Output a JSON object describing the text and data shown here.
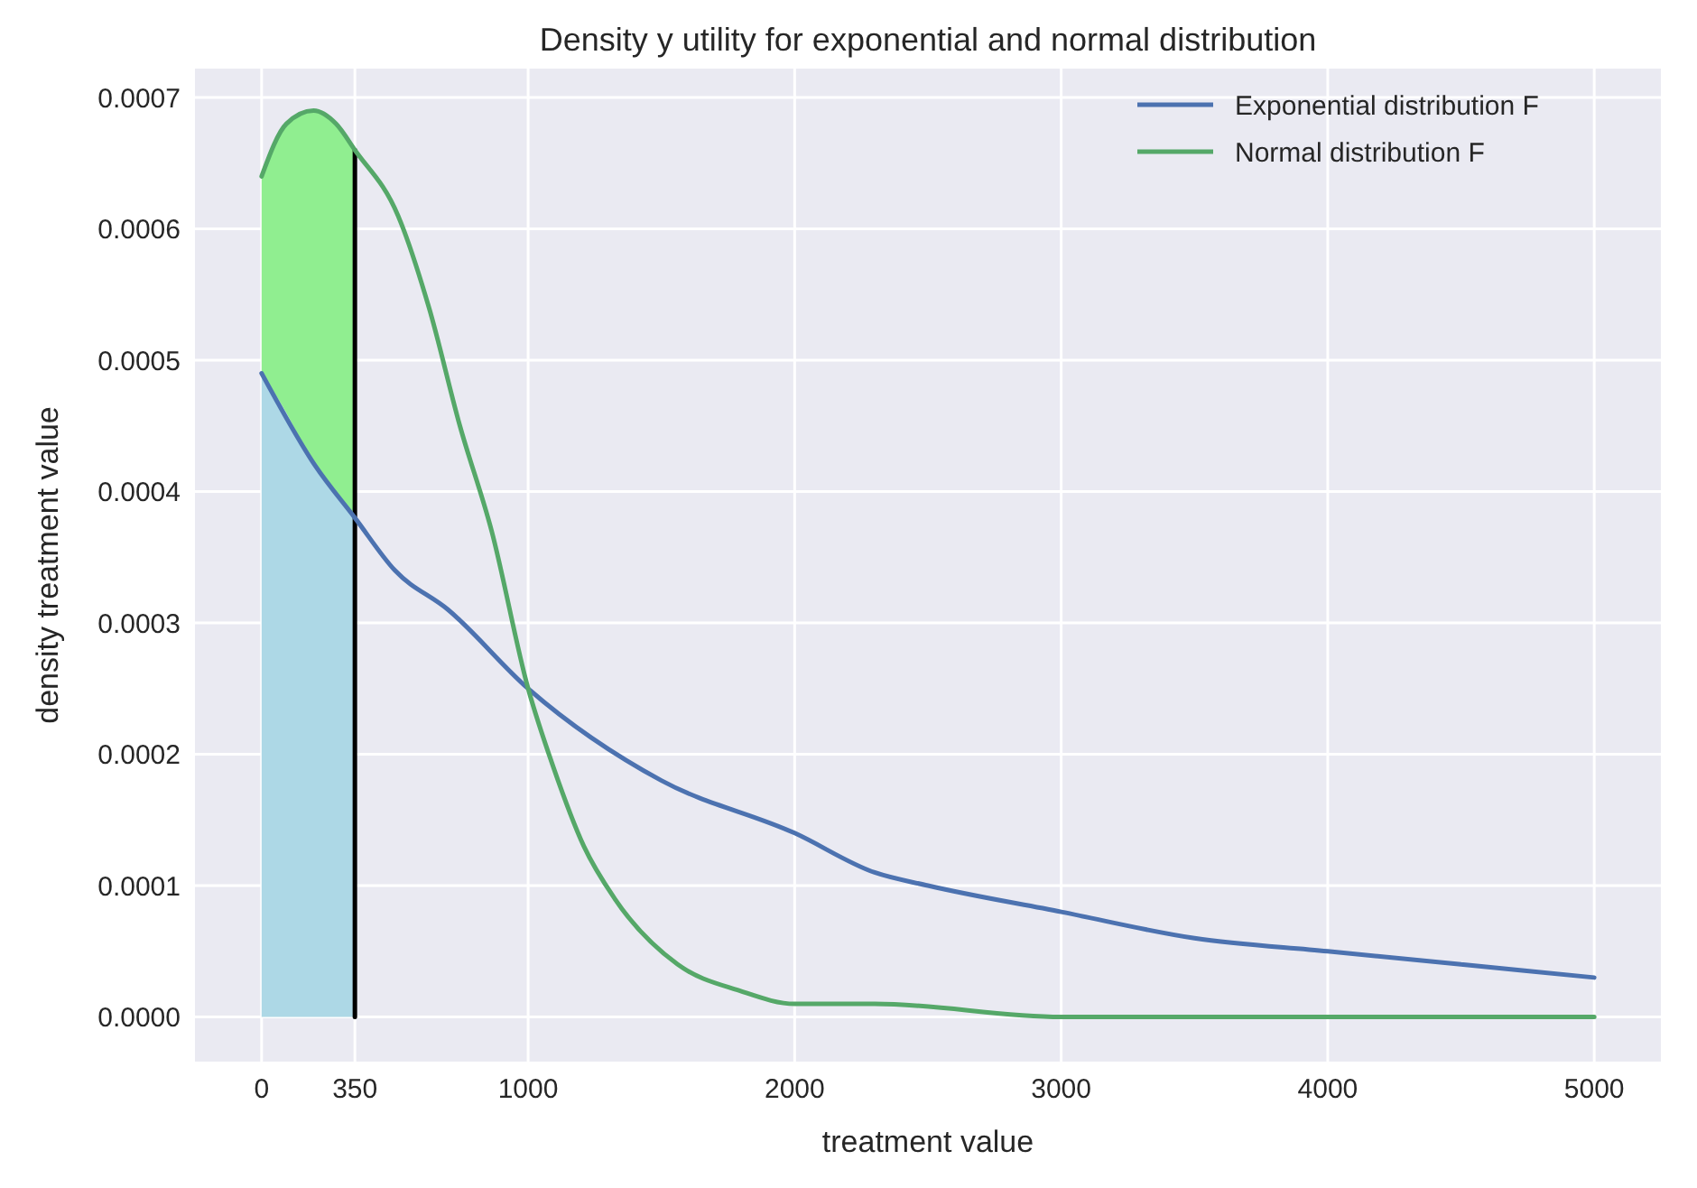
{
  "chart_data": {
    "type": "line",
    "title": "Density y utility for exponential and normal distribution",
    "xlabel": "treatment value",
    "ylabel": "density treatment value",
    "xlim": [
      -250,
      5250
    ],
    "ylim": [
      -3.4e-05,
      0.000722
    ],
    "xticks": [
      0,
      350,
      1000,
      2000,
      3000,
      4000,
      5000
    ],
    "yticks": [
      {
        "value": 0,
        "label": "0.0000"
      },
      {
        "value": 0.0001,
        "label": "0.0001"
      },
      {
        "value": 0.0002,
        "label": "0.0002"
      },
      {
        "value": 0.0003,
        "label": "0.0003"
      },
      {
        "value": 0.0004,
        "label": "0.0004"
      },
      {
        "value": 0.0005,
        "label": "0.0005"
      },
      {
        "value": 0.0006,
        "label": "0.0006"
      },
      {
        "value": 0.0007,
        "label": "0.0007"
      }
    ],
    "grid": true,
    "legend": "top right",
    "stacked": true,
    "series": [
      {
        "type": "area",
        "color": "#add8e6",
        "x": [
          0,
          93,
          195,
          279,
          350
        ],
        "values": [
          0.00049,
          0.00046,
          0.00042,
          0.0004,
          0.00038
        ]
      },
      {
        "type": "area",
        "color": "#90ee90",
        "x": [
          0,
          93,
          195,
          279,
          350
        ],
        "values": [
          0.00015,
          0.00022,
          0.00027,
          0.00028,
          0.00028
        ]
      },
      {
        "type": "line",
        "color": "#000000",
        "x": [
          350,
          350
        ],
        "values": [
          0,
          0.00066
        ]
      },
      {
        "name": "Exponential distribution F",
        "color": "#4c72b0",
        "x": [
          0,
          200,
          350,
          500,
          700,
          1000,
          1500,
          2000,
          2300,
          2500,
          3000,
          3500,
          4000,
          4500,
          5000
        ],
        "values": [
          0.00049,
          0.00042,
          0.00038,
          0.00034,
          0.00031,
          0.00025,
          0.00018,
          0.00014,
          0.00011,
          0.0001,
          8e-05,
          6e-05,
          5e-05,
          4e-05,
          3e-05
        ]
      },
      {
        "name": "Normal distribution F",
        "color": "#55a868",
        "x": [
          0,
          93,
          195,
          279,
          350,
          512,
          628,
          744,
          863,
          1000,
          1095,
          1209,
          1325,
          1561,
          1793,
          2000,
          2300,
          3000,
          4000,
          5000
        ],
        "values": [
          0.00064,
          0.00068,
          0.00069,
          0.00068,
          0.00066,
          0.00061,
          0.00054,
          0.00045,
          0.00037,
          0.00025,
          0.00019,
          0.00013,
          9e-05,
          4e-05,
          2e-05,
          1e-05,
          1e-05,
          0,
          0,
          0
        ]
      }
    ]
  }
}
